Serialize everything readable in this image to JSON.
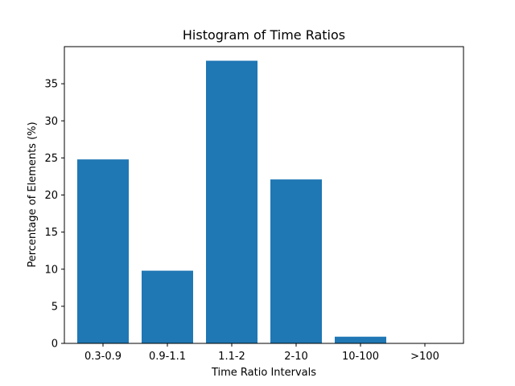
{
  "chart_data": {
    "type": "bar",
    "title": "Histogram of Time Ratios",
    "xlabel": "Time Ratio Intervals",
    "ylabel": "Percentage of Elements (%)",
    "categories": [
      "0.3-0.9",
      "0.9-1.1",
      "1.1-2",
      "2-10",
      "10-100",
      ">100"
    ],
    "values": [
      24.8,
      9.8,
      38.1,
      22.1,
      0.9,
      0.0
    ],
    "ylim": [
      0,
      40
    ],
    "yticks": [
      0,
      5,
      10,
      15,
      20,
      25,
      30,
      35
    ],
    "bar_color": "#1f77b4",
    "grid": false,
    "legend": "none"
  }
}
